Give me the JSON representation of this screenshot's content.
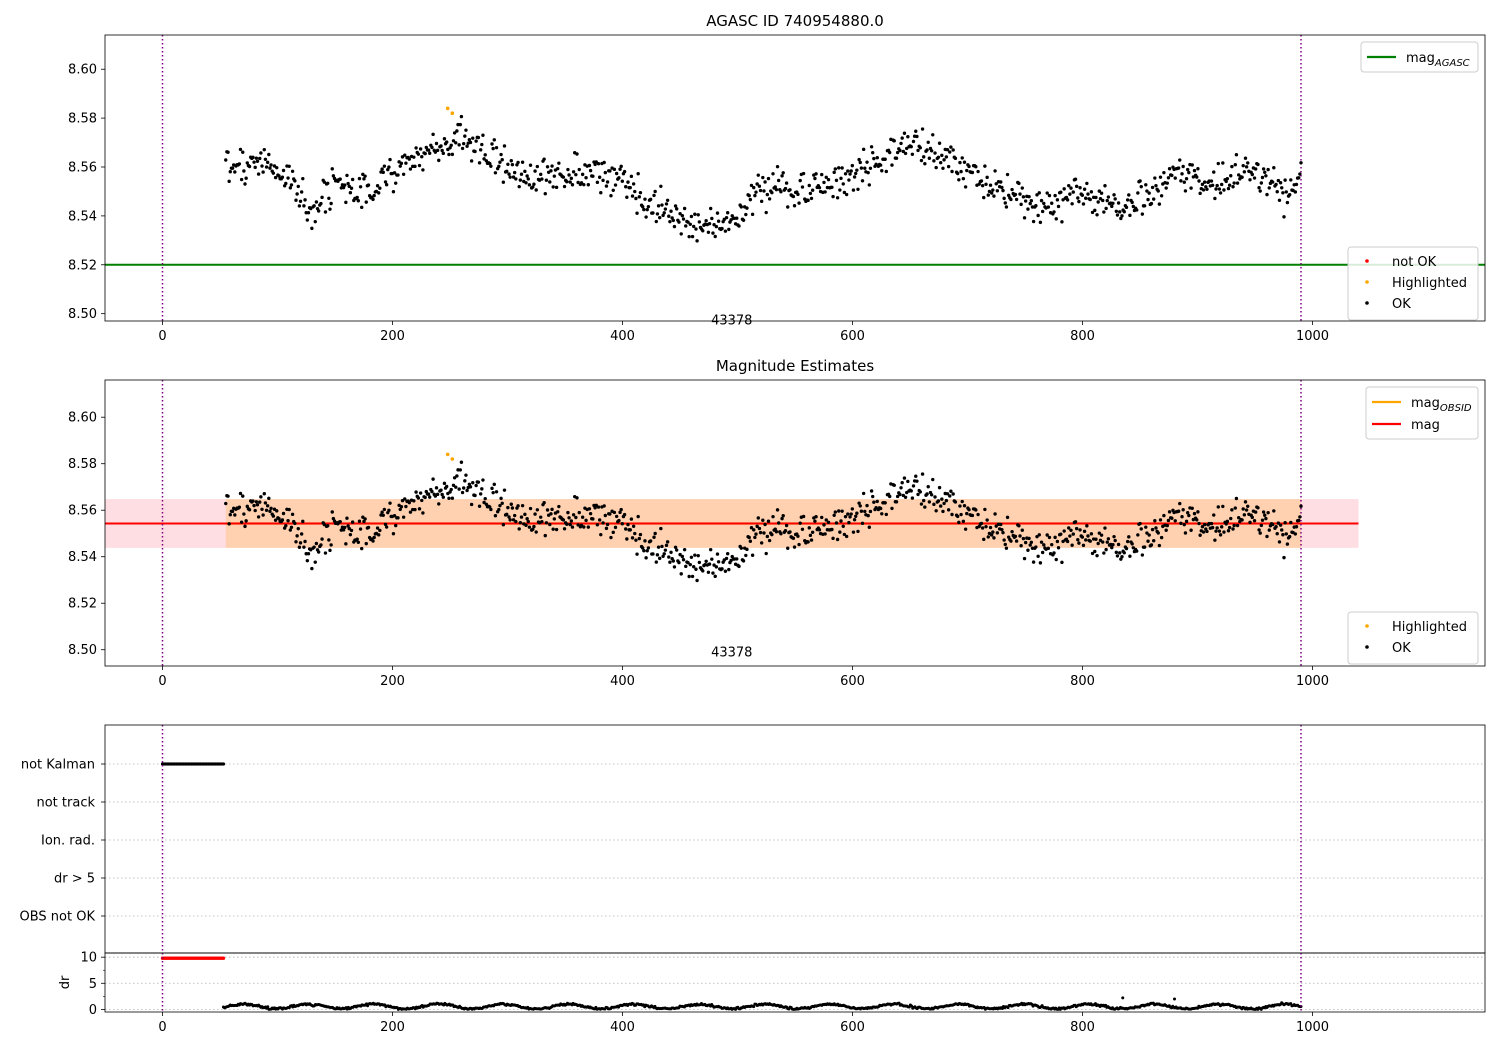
{
  "chart_data": [
    {
      "type": "scatter",
      "title": "AGASC ID 740954880.0",
      "xlim": [
        -50,
        1150
      ],
      "ylim": [
        8.497,
        8.614
      ],
      "xticks": [
        0,
        200,
        400,
        600,
        800,
        1000
      ],
      "yticks": [
        8.5,
        8.52,
        8.54,
        8.56,
        8.58,
        8.6
      ],
      "ytick_labels": [
        "8.50",
        "8.52",
        "8.54",
        "8.56",
        "8.58",
        "8.60"
      ],
      "vlines": [
        0,
        990
      ],
      "hline": {
        "name": "mag_AGASC",
        "value": 8.52,
        "color": "#008000"
      },
      "annotation": {
        "text": "43378",
        "x": 495,
        "y": 8.5
      },
      "series": [
        {
          "name": "not OK",
          "color": "#ff0000",
          "x": [],
          "y": []
        },
        {
          "name": "Highlighted",
          "color": "#ffa500",
          "x": [
            248,
            252
          ],
          "y": [
            8.584,
            8.582
          ]
        },
        {
          "name": "OK",
          "color": "#000000",
          "trend": {
            "x": [
              55,
              70,
              90,
              110,
              130,
              150,
              170,
              190,
              210,
              240,
              260,
              280,
              300,
              320,
              340,
              360,
              380,
              400,
              420,
              440,
              460,
              480,
              500,
              520,
              540,
              560,
              580,
              600,
              620,
              640,
              660,
              680,
              700,
              720,
              740,
              760,
              780,
              800,
              820,
              840,
              860,
              880,
              900,
              920,
              940,
              960,
              975,
              990
            ],
            "y": [
              8.561,
              8.56,
              8.563,
              8.553,
              8.543,
              8.553,
              8.548,
              8.555,
              8.562,
              8.568,
              8.572,
              8.566,
              8.561,
              8.555,
              8.556,
              8.559,
              8.557,
              8.556,
              8.545,
              8.54,
              8.536,
              8.535,
              8.541,
              8.55,
              8.553,
              8.55,
              8.553,
              8.557,
              8.563,
              8.568,
              8.568,
              8.563,
              8.559,
              8.552,
              8.548,
              8.544,
              8.546,
              8.549,
              8.545,
              8.543,
              8.549,
              8.557,
              8.555,
              8.554,
              8.558,
              8.554,
              8.548,
              8.555
            ]
          },
          "x_range": [
            55,
            990
          ],
          "n_points": 950,
          "scatter": 0.005
        }
      ],
      "legend_lines": [
        {
          "label": "mag",
          "sub": "AGASC",
          "color": "#008000"
        }
      ],
      "legend_points": [
        "not OK",
        "Highlighted",
        "OK"
      ]
    },
    {
      "type": "scatter",
      "title": "Magnitude Estimates",
      "xlim": [
        -50,
        1150
      ],
      "ylim": [
        8.493,
        8.616
      ],
      "xticks": [
        0,
        200,
        400,
        600,
        800,
        1000
      ],
      "yticks": [
        8.5,
        8.52,
        8.54,
        8.56,
        8.58,
        8.6
      ],
      "ytick_labels": [
        "8.50",
        "8.52",
        "8.54",
        "8.56",
        "8.58",
        "8.60"
      ],
      "vlines": [
        0,
        990
      ],
      "mag_line": {
        "name": "mag",
        "value": 8.5543,
        "color": "#ff0000"
      },
      "mag_band": {
        "low": 8.5438,
        "high": 8.5648,
        "x": [
          -50,
          1040
        ],
        "color": "#ffb6c1"
      },
      "obsid_segments": [
        {
          "name": "mag_OBSID",
          "x": [
            55,
            990
          ],
          "value": 8.5543,
          "low": 8.5438,
          "high": 8.5648,
          "color": "#ffa500"
        }
      ],
      "annotation": {
        "text": "43378",
        "x": 495,
        "y": 8.5
      },
      "series": [
        {
          "name": "Highlighted",
          "color": "#ffa500",
          "x": [
            248,
            252
          ],
          "y": [
            8.584,
            8.582
          ]
        },
        {
          "name": "OK",
          "color": "#000000"
        }
      ],
      "legend_lines": [
        {
          "label": "mag",
          "sub": "OBSID",
          "color": "#ffa500"
        },
        {
          "label": "mag",
          "sub": "",
          "color": "#ff0000"
        }
      ],
      "legend_points": [
        "Highlighted",
        "OK"
      ]
    },
    {
      "type": "scatter",
      "title": "",
      "xlim": [
        -50,
        1150
      ],
      "flag_categories": [
        "not Kalman",
        "not track",
        "Ion. rad.",
        "dr > 5",
        "OBS not OK"
      ],
      "not_kalman_x": [
        0,
        53
      ],
      "vlines": [
        0,
        990
      ]
    },
    {
      "type": "scatter",
      "title": "",
      "xlim": [
        -50,
        1150
      ],
      "ylim": [
        -0.5,
        10.8
      ],
      "yticks": [
        0,
        5,
        10
      ],
      "ylabel": "dr",
      "xticks": [
        0,
        200,
        400,
        600,
        800,
        1000
      ],
      "red_points": {
        "x": [
          0,
          53
        ],
        "y": 9.8
      },
      "dr_points": {
        "x": [
          53,
          990
        ],
        "typical": [
          0.0,
          1.5
        ],
        "outliers": [
          {
            "x": 835,
            "y": 2.2
          },
          {
            "x": 880,
            "y": 2.0
          }
        ]
      },
      "vlines": [
        0,
        990
      ]
    }
  ]
}
